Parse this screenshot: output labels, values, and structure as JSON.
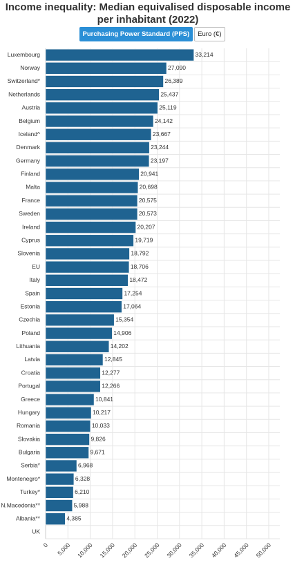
{
  "header": {
    "buttons": [
      "Purchasing Power Standard (PPS)",
      "Euro (€)"
    ]
  },
  "chart_data": {
    "type": "hbar",
    "title": "Income inequality: Median equivalised disposable income per inhabitant (2022)",
    "categories": [
      "Luxembourg",
      "Norway",
      "Switzerland*",
      "Netherlands",
      "Austria",
      "Belgium",
      "Iceland^",
      "Denmark",
      "Germany",
      "Finland",
      "Malta",
      "France",
      "Sweden",
      "Ireland",
      "Cyprus",
      "Slovenia",
      "EU",
      "Italy",
      "Spain",
      "Estonia",
      "Czechia",
      "Poland",
      "Lithuania",
      "Latvia",
      "Croatia",
      "Portugal",
      "Greece",
      "Hungary",
      "Romania",
      "Slovakia",
      "Bulgaria",
      "Serbia*",
      "Montenegro*",
      "Turkey*",
      "N.Macedonia**",
      "Albania**",
      "UK"
    ],
    "values": [
      33214,
      27090,
      26389,
      25437,
      25119,
      24142,
      23667,
      23244,
      23197,
      20941,
      20698,
      20575,
      20573,
      20207,
      19719,
      18792,
      18706,
      18472,
      17254,
      17064,
      15354,
      14906,
      14202,
      12845,
      12277,
      12266,
      10841,
      10217,
      10033,
      9826,
      9671,
      6968,
      6328,
      6210,
      5988,
      4385,
      null
    ],
    "value_labels": [
      "33,214",
      "27,090",
      "26,389",
      "25,437",
      "25,119",
      "24,142",
      "23,667",
      "23,244",
      "23,197",
      "20,941",
      "20,698",
      "20,575",
      "20,573",
      "20,207",
      "19,719",
      "18,792",
      "18,706",
      "18,472",
      "17,254",
      "17,064",
      "15,354",
      "14,906",
      "14,202",
      "12,845",
      "12,277",
      "12,266",
      "10,841",
      "10,217",
      "10,033",
      "9,826",
      "9,671",
      "6,968",
      "6,328",
      "6,210",
      "5,988",
      "4,385",
      null
    ],
    "color": "#1f6391",
    "xlim": [
      0,
      50000
    ],
    "xticks": [
      0,
      {
        "value": 5000,
        "label": "5,000"
      },
      {
        "value": 10000,
        "label": "10,000"
      },
      {
        "value": 15000,
        "label": "15,000"
      },
      {
        "value": 20000,
        "label": "20,000"
      },
      {
        "value": 25000,
        "label": "25,000"
      },
      {
        "value": 30000,
        "label": "30,000"
      },
      {
        "value": 35000,
        "label": "35,000"
      },
      {
        "value": 40000,
        "label": "40,000"
      },
      {
        "value": 45000,
        "label": "45,000"
      },
      {
        "value": 50000,
        "label": "50,000"
      }
    ],
    "grid": true
  }
}
